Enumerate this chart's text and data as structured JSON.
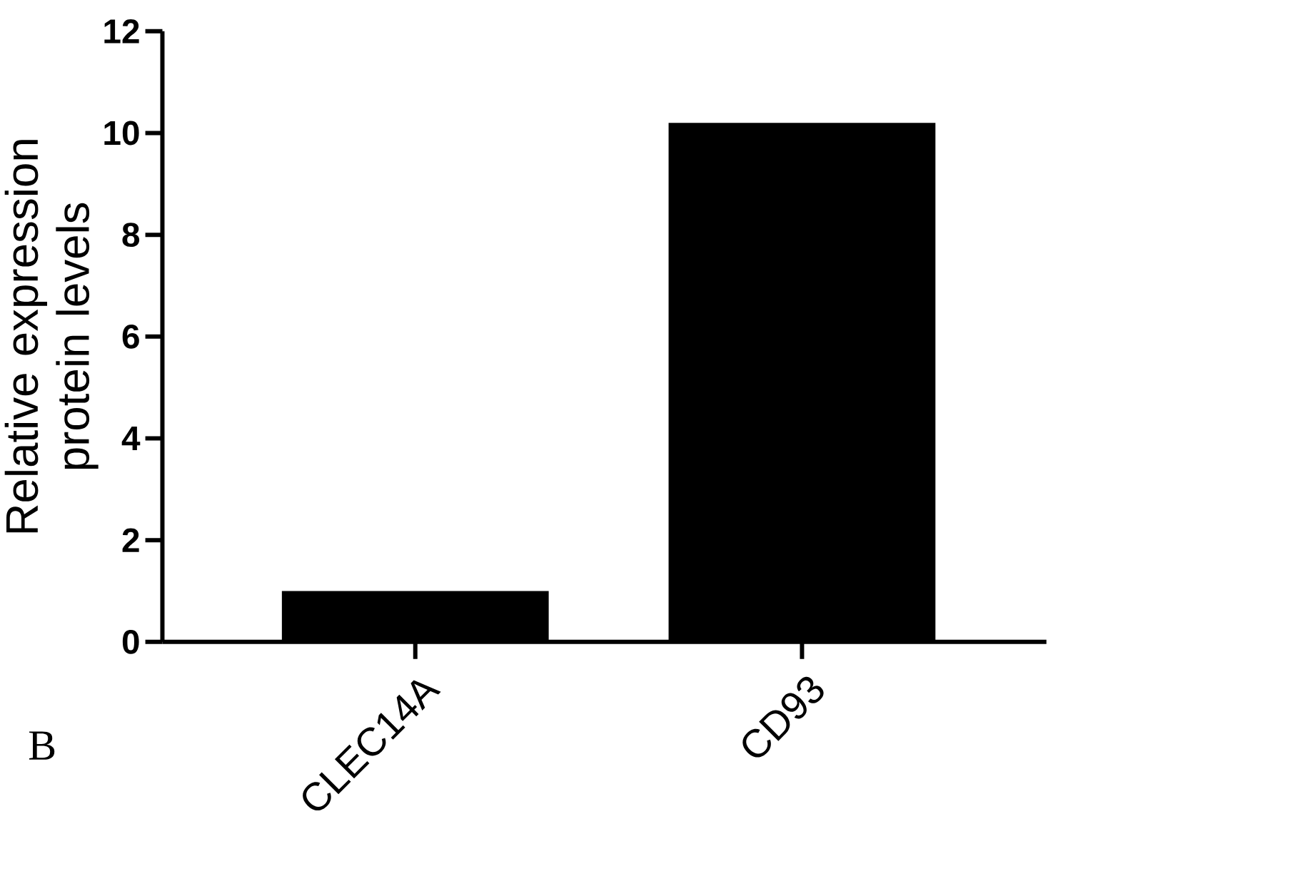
{
  "chart_data": {
    "type": "bar",
    "ylabel": "Relative expression protein levels",
    "categories": [
      "CLEC14A",
      "CD93"
    ],
    "values": [
      1.0,
      10.2
    ],
    "color": "#000000",
    "ylim": [
      0,
      12
    ],
    "yticks": [
      0,
      2,
      4,
      6,
      8,
      10,
      12
    ],
    "annotations": [
      "B"
    ]
  }
}
